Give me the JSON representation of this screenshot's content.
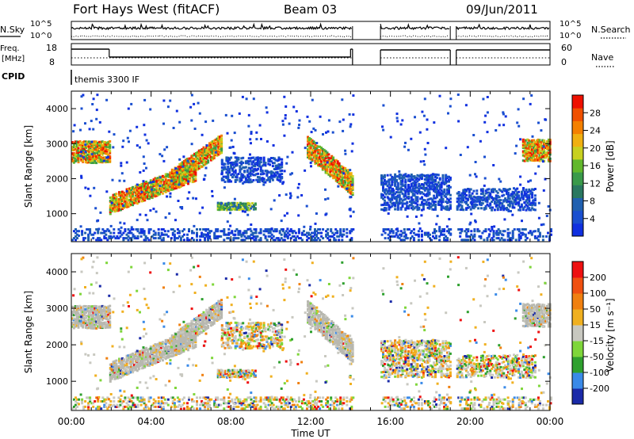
{
  "header": {
    "station": "Fort Hays West (fitACF)",
    "beam": "Beam 03",
    "date": "09/Jun/2011"
  },
  "summary_panels": {
    "nsky_label": "N.Sky",
    "nsearch_label": "N.Search",
    "noise_ticks": [
      "10^5",
      "10^0"
    ],
    "freq_label_top": "Freq.",
    "freq_label_unit": "[MHz]",
    "freq_ticks": [
      "18",
      "8"
    ],
    "nave_label": "Nave",
    "nave_ticks": [
      "60",
      "0"
    ],
    "cpid_label": "CPID",
    "cpid_value": "themis 3300 IF"
  },
  "colors": {
    "power_scale": [
      "#1030e0",
      "#1a4fd0",
      "#2060b0",
      "#2a7860",
      "#3a9a4a",
      "#62b82c",
      "#c8d020",
      "#f0b010",
      "#f48000",
      "#f05000",
      "#ee1000"
    ],
    "velocity_scale": [
      "#1a2aa8",
      "#3a8ae8",
      "#2ea02e",
      "#7ed63a",
      "#c8c8c0",
      "#f0b020",
      "#f08010",
      "#f05010",
      "#ee1010"
    ],
    "ground_scatter": "#b8b8b0"
  },
  "chart_data": [
    {
      "type": "heatmap",
      "name": "power",
      "ylabel": "Slant Range [km]",
      "yticks": [
        "1000",
        "2000",
        "3000",
        "4000"
      ],
      "ylim": [
        200,
        4500
      ],
      "xlim": [
        0,
        24
      ],
      "colorbar_label": "Power [dB]",
      "colorbar_ticks": [
        "4",
        "8",
        "12",
        "16",
        "20",
        "24",
        "28"
      ],
      "colorbar_range": [
        0,
        32
      ],
      "data_gaps": [
        [
          14.1,
          15.5
        ],
        [
          19.0,
          19.3
        ]
      ],
      "features": [
        {
          "t0": 0.0,
          "t1": 1.9,
          "r0": 2450,
          "r1": 3050,
          "level": "high"
        },
        {
          "t0": 1.9,
          "t1": 6.2,
          "r0": 1250,
          "r1": 2200,
          "level": "high",
          "trend": "rising"
        },
        {
          "t0": 5.0,
          "t1": 7.5,
          "r0": 2000,
          "r1": 3000,
          "level": "high",
          "trend": "rising"
        },
        {
          "t0": 7.5,
          "t1": 10.5,
          "r0": 1900,
          "r1": 2600,
          "level": "low"
        },
        {
          "t0": 7.3,
          "t1": 9.2,
          "r0": 1100,
          "r1": 1300,
          "level": "medium"
        },
        {
          "t0": 11.8,
          "t1": 14.1,
          "r0": 1800,
          "r1": 2900,
          "level": "high",
          "trend": "falling"
        },
        {
          "t0": 15.5,
          "t1": 19.0,
          "r0": 1100,
          "r1": 2100,
          "level": "low"
        },
        {
          "t0": 19.3,
          "t1": 23.2,
          "r0": 1100,
          "r1": 1700,
          "level": "low"
        },
        {
          "t0": 22.6,
          "t1": 24.0,
          "r0": 2500,
          "r1": 3100,
          "level": "high"
        }
      ]
    },
    {
      "type": "heatmap",
      "name": "velocity",
      "ylabel": "Slant Range [km]",
      "yticks": [
        "1000",
        "2000",
        "3000",
        "4000"
      ],
      "ylim": [
        200,
        4500
      ],
      "xlim": [
        0,
        24
      ],
      "colorbar_label": "Velocity [m s⁻¹]",
      "colorbar_ticks": [
        "200",
        "100",
        "50",
        "15",
        "-15",
        "-50",
        "-100",
        "-200"
      ],
      "colorbar_range": [
        -250,
        250
      ],
      "xticks": [
        "00:00",
        "04:00",
        "08:00",
        "12:00",
        "16:00",
        "20:00",
        "00:00"
      ],
      "xlabel": "Time UT"
    }
  ]
}
